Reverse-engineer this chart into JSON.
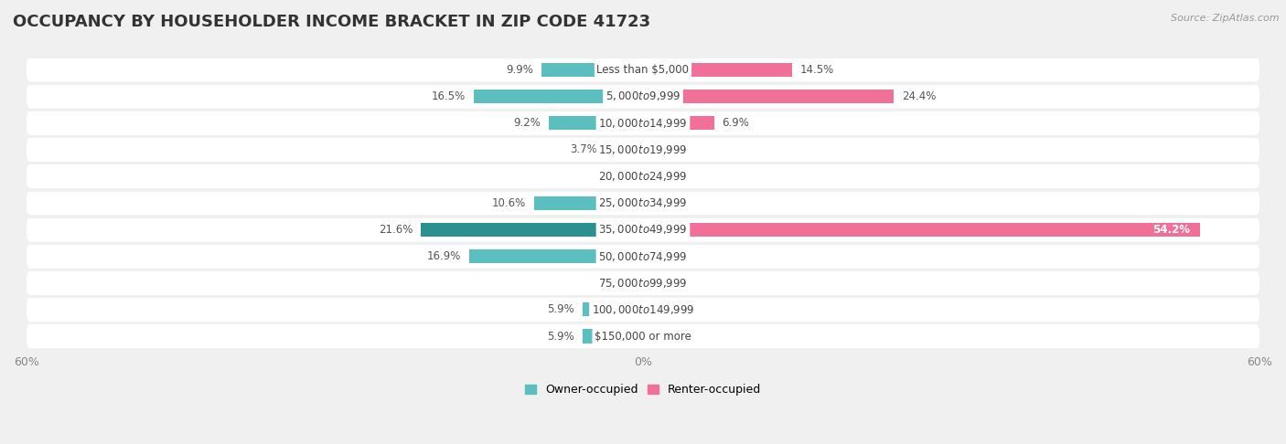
{
  "title": "OCCUPANCY BY HOUSEHOLDER INCOME BRACKET IN ZIP CODE 41723",
  "source": "Source: ZipAtlas.com",
  "categories": [
    "Less than $5,000",
    "$5,000 to $9,999",
    "$10,000 to $14,999",
    "$15,000 to $19,999",
    "$20,000 to $24,999",
    "$25,000 to $34,999",
    "$35,000 to $49,999",
    "$50,000 to $74,999",
    "$75,000 to $99,999",
    "$100,000 to $149,999",
    "$150,000 or more"
  ],
  "owner_values": [
    9.9,
    16.5,
    9.2,
    3.7,
    0.0,
    10.6,
    21.6,
    16.9,
    0.0,
    5.9,
    5.9
  ],
  "renter_values": [
    14.5,
    24.4,
    6.9,
    0.0,
    0.0,
    0.0,
    54.2,
    0.0,
    0.0,
    0.0,
    0.0
  ],
  "owner_color": "#5BBFBF",
  "renter_color": "#F07098",
  "owner_dark_color": "#2A9090",
  "renter_dark_color": "#E05080",
  "bar_height": 0.52,
  "xlim": 60.0,
  "background_color": "#f0f0f0",
  "row_color_light": "#f8f8f8",
  "row_color_dark": "#ebebeb",
  "title_fontsize": 13,
  "label_fontsize": 8.5,
  "tick_fontsize": 9,
  "legend_fontsize": 9,
  "source_fontsize": 8
}
